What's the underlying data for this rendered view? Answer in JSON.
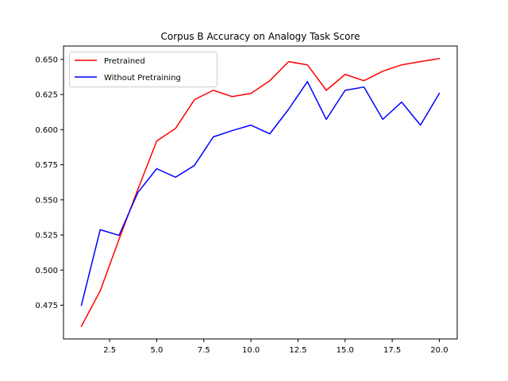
{
  "chart_data": {
    "type": "line",
    "title": "Corpus B Accuracy on Analogy Task Score",
    "xlabel": "",
    "ylabel": "",
    "x": [
      1,
      2,
      3,
      4,
      5,
      6,
      7,
      8,
      9,
      10,
      11,
      12,
      13,
      14,
      15,
      16,
      17,
      18,
      19,
      20
    ],
    "xlim": [
      0.05,
      20.95
    ],
    "ylim": [
      0.451,
      0.6595
    ],
    "xticks": [
      2.5,
      5.0,
      7.5,
      10.0,
      12.5,
      15.0,
      17.5,
      20.0
    ],
    "xtick_labels": [
      "2.5",
      "5.0",
      "7.5",
      "10.0",
      "12.5",
      "15.0",
      "17.5",
      "20.0"
    ],
    "yticks": [
      0.475,
      0.5,
      0.525,
      0.55,
      0.575,
      0.6,
      0.625,
      0.65
    ],
    "ytick_labels": [
      "0.475",
      "0.500",
      "0.525",
      "0.550",
      "0.575",
      "0.600",
      "0.625",
      "0.650"
    ],
    "grid": false,
    "legend_position": "upper-left",
    "series": [
      {
        "name": "Pretrained",
        "color": "#ff0000",
        "values": [
          0.46,
          0.4853,
          0.522,
          0.5576,
          0.5919,
          0.6009,
          0.6213,
          0.628,
          0.6235,
          0.6258,
          0.6348,
          0.6484,
          0.6461,
          0.628,
          0.6393,
          0.6348,
          0.6416,
          0.6461,
          0.6484,
          0.6506
        ]
      },
      {
        "name": "Without Pretraining",
        "color": "#0000ff",
        "values": [
          0.475,
          0.5288,
          0.5247,
          0.5553,
          0.5722,
          0.5661,
          0.5745,
          0.5948,
          0.5993,
          0.6032,
          0.597,
          0.6145,
          0.6342,
          0.6073,
          0.628,
          0.6303,
          0.6073,
          0.6196,
          0.6032,
          0.6258
        ]
      }
    ]
  }
}
